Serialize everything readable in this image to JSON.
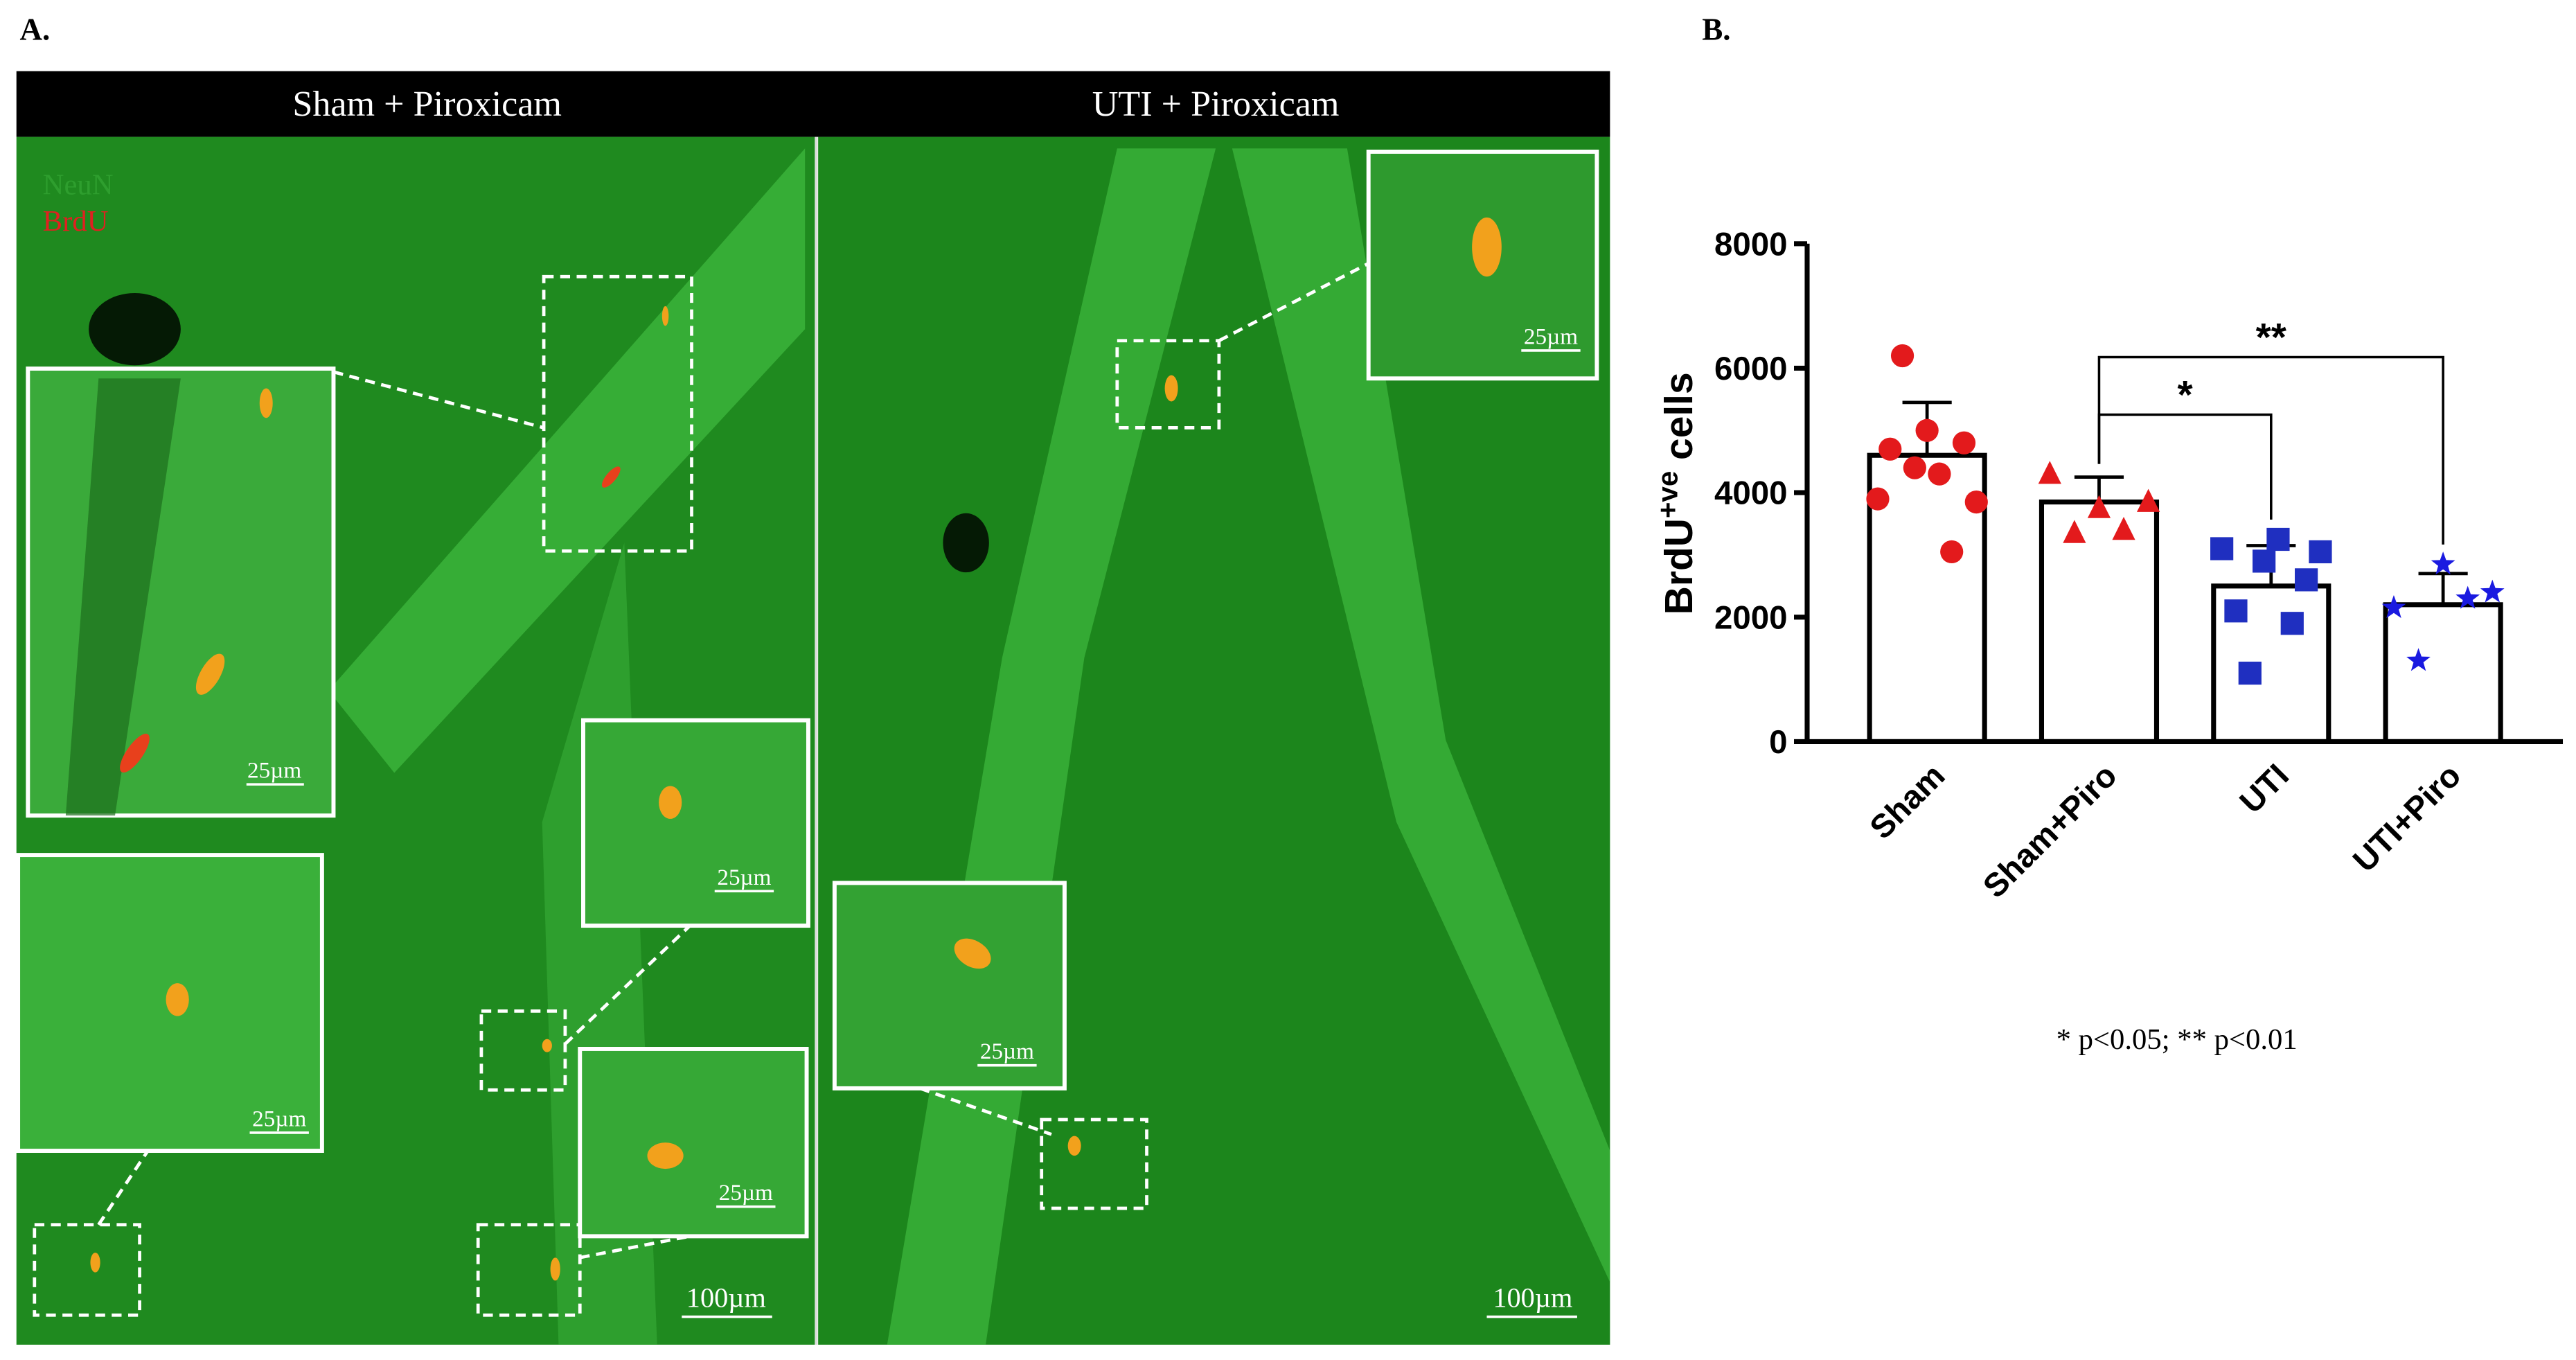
{
  "panel_a": {
    "label": "A.",
    "columns": [
      "Sham + Piroxicam",
      "UTI + Piroxicam"
    ],
    "legend": [
      "NeuN",
      "BrdU"
    ],
    "scale_inset": "25µm",
    "scale_main": "100µm"
  },
  "panel_b": {
    "label": "B.",
    "footnote": "*  p<0.05; ** p<0.01"
  },
  "chart_data": {
    "type": "bar",
    "y_label": {
      "base": "BrdU",
      "sup": "+ve",
      "rest": " cells"
    },
    "categories": [
      "Sham",
      "Sham+Piro",
      "UTI",
      "UTI+Piro"
    ],
    "values": [
      4600,
      3850,
      2500,
      2200
    ],
    "errors": [
      850,
      400,
      650,
      500
    ],
    "points": [
      [
        3900,
        4700,
        6200,
        4400,
        5000,
        4300,
        3050,
        4800,
        3850
      ],
      [
        4300,
        3350,
        3750,
        3400,
        3850
      ],
      [
        3100,
        2100,
        1100,
        2900,
        3250,
        1900,
        2600,
        3050
      ],
      [
        2150,
        1300,
        2850,
        2300,
        2400
      ]
    ],
    "colors": [
      "#e31a1c",
      "#e31a1c",
      "#1f2fc0",
      "#1a1ae0"
    ],
    "markers": [
      "circle",
      "triangle",
      "square",
      "star"
    ],
    "ylim": [
      0,
      8000
    ],
    "yticks": [
      0,
      2000,
      4000,
      6000,
      8000
    ],
    "annotations": [
      {
        "label": "*",
        "from": "Sham+Piro",
        "to": "UTI"
      },
      {
        "label": "**",
        "from": "Sham+Piro",
        "to": "UTI+Piro"
      }
    ]
  }
}
